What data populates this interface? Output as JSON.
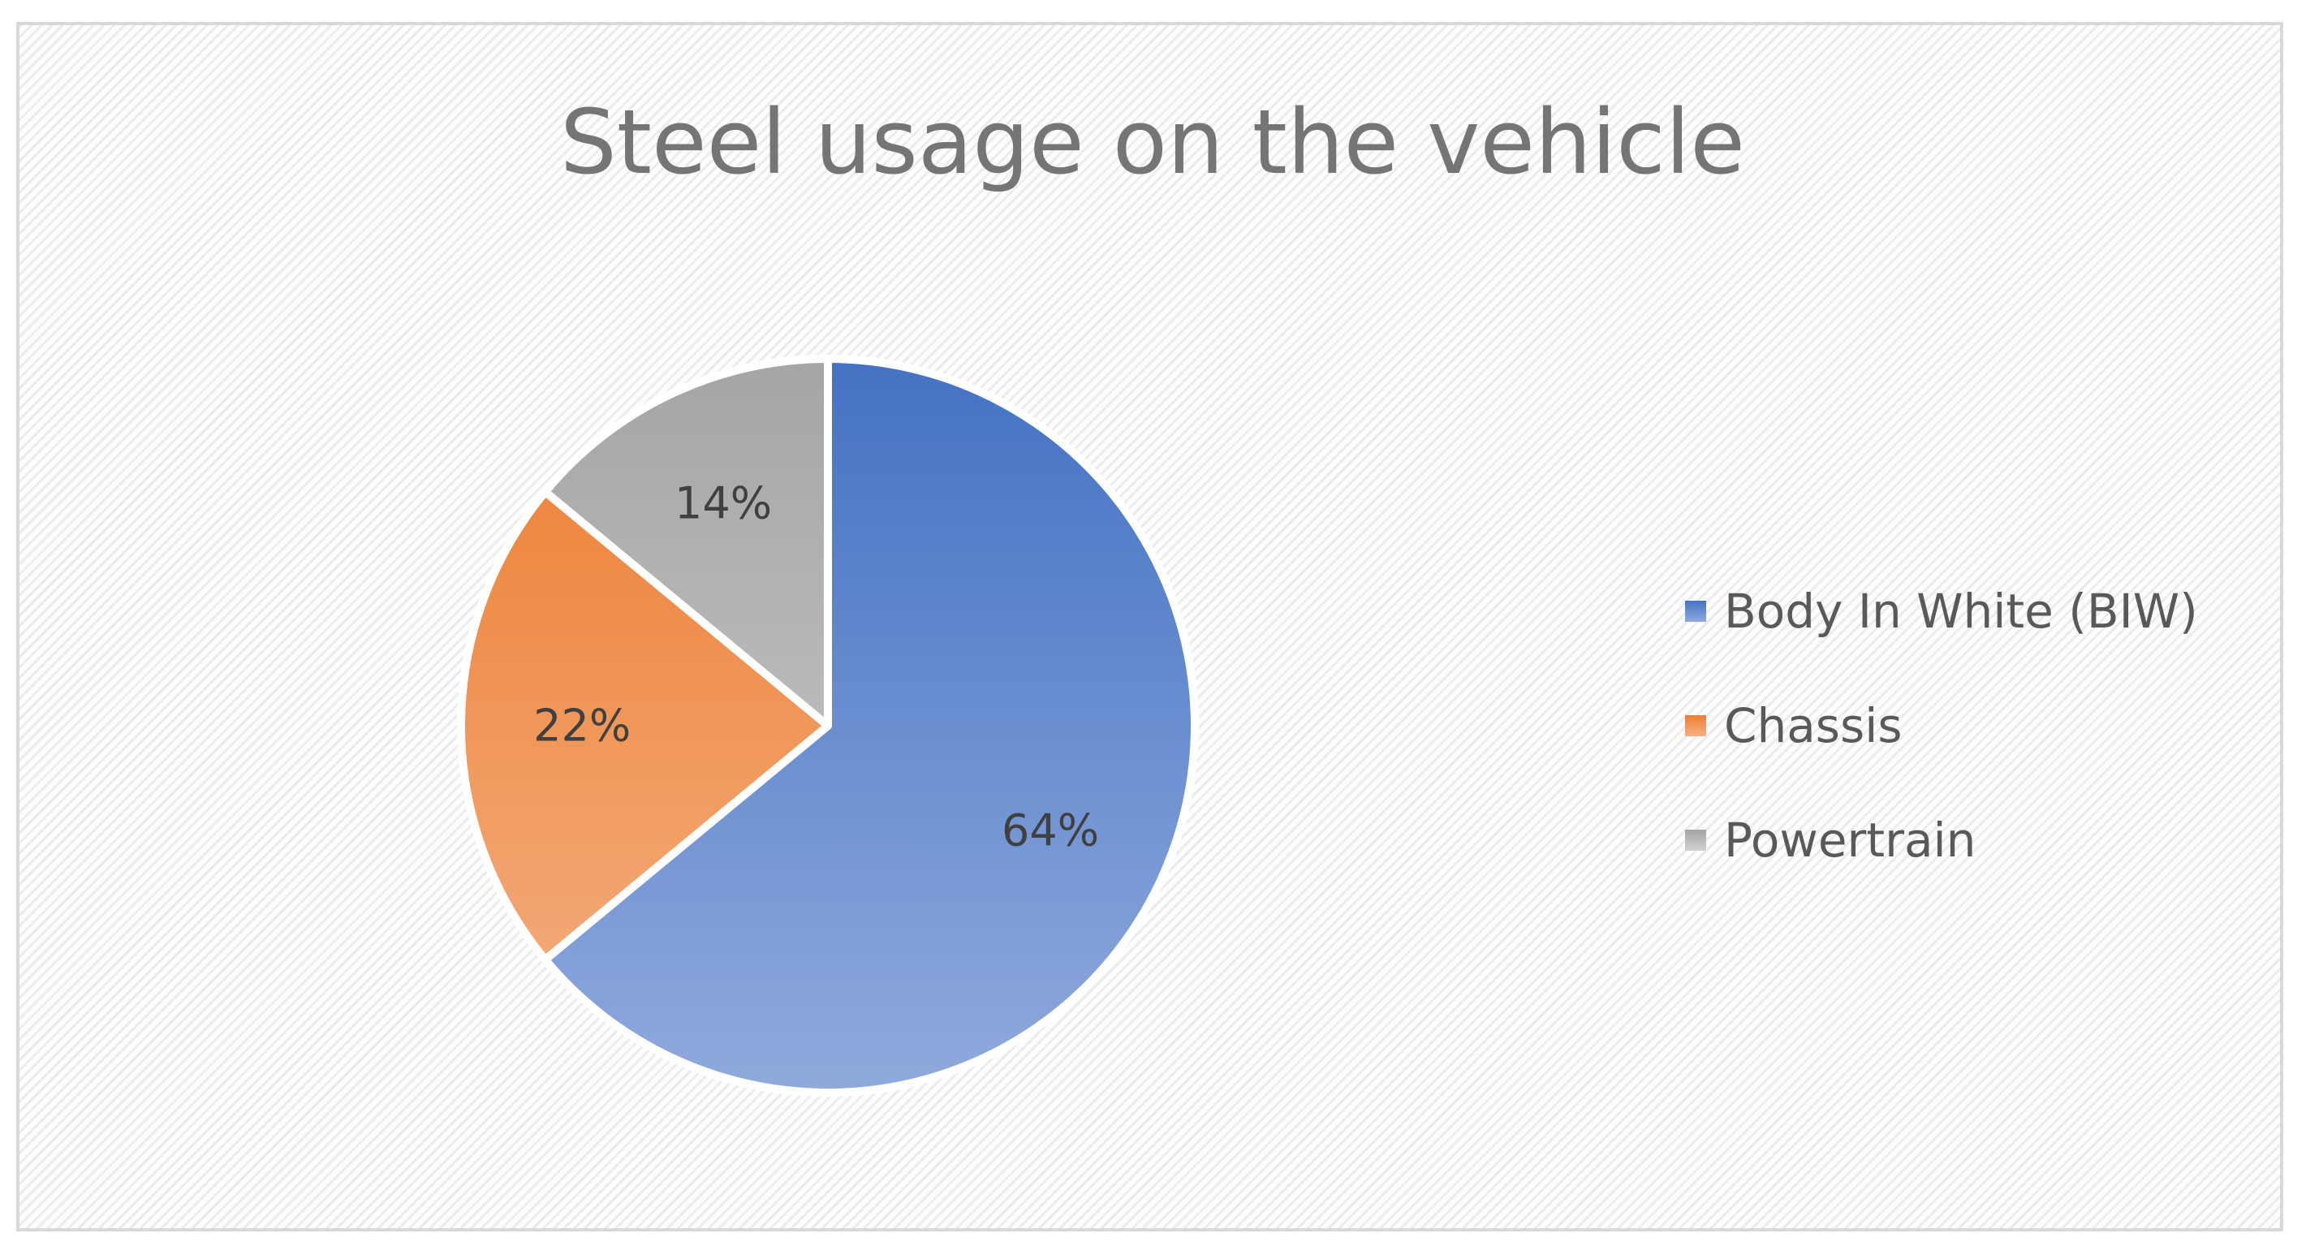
{
  "chart_data": {
    "type": "pie",
    "title": "Steel usage on the vehicle",
    "categories": [
      "Body In White (BIW)",
      "Chassis",
      "Powertrain"
    ],
    "values": [
      64,
      22,
      14
    ],
    "labels": [
      "64%",
      "22%",
      "14%"
    ],
    "start_angle_deg": 0,
    "direction": "clockwise",
    "legend": "right",
    "colors": {
      "Body In White (BIW)": {
        "top": "#4472c4",
        "bottom": "#8faadc"
      },
      "Chassis": {
        "top": "#ed7d31",
        "bottom": "#f4b183"
      },
      "Powertrain": {
        "top": "#a5a5a5",
        "bottom": "#d0d0d0"
      }
    }
  }
}
